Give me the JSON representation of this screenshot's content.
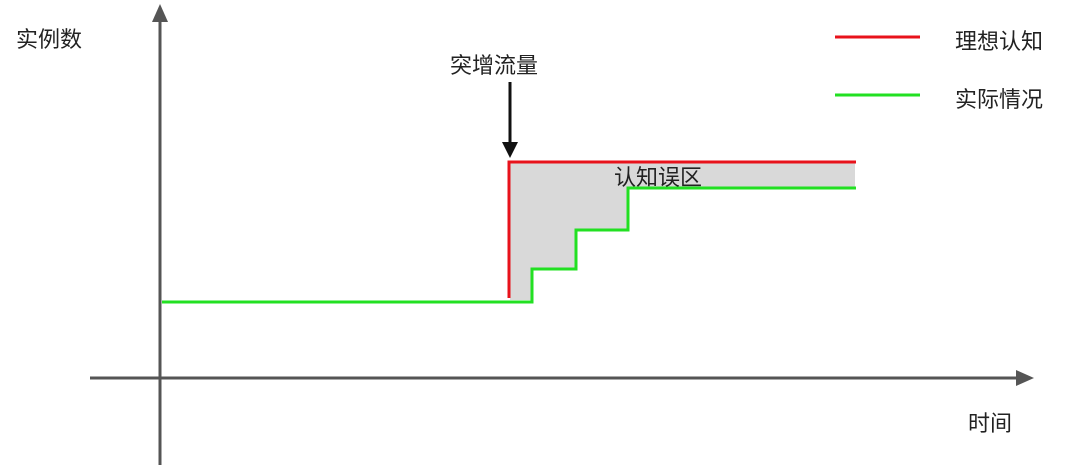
{
  "axes": {
    "y_label": "实例数",
    "x_label": "时间"
  },
  "annotation": {
    "surge": "突增流量",
    "gap": "认知误区"
  },
  "legend": [
    {
      "label": "理想认知",
      "color": "#e8121b"
    },
    {
      "label": "实际情况",
      "color": "#22e022"
    }
  ],
  "colors": {
    "axis": "#555555",
    "gap_fill": "#d9d9d9",
    "arrow": "#111111"
  }
}
